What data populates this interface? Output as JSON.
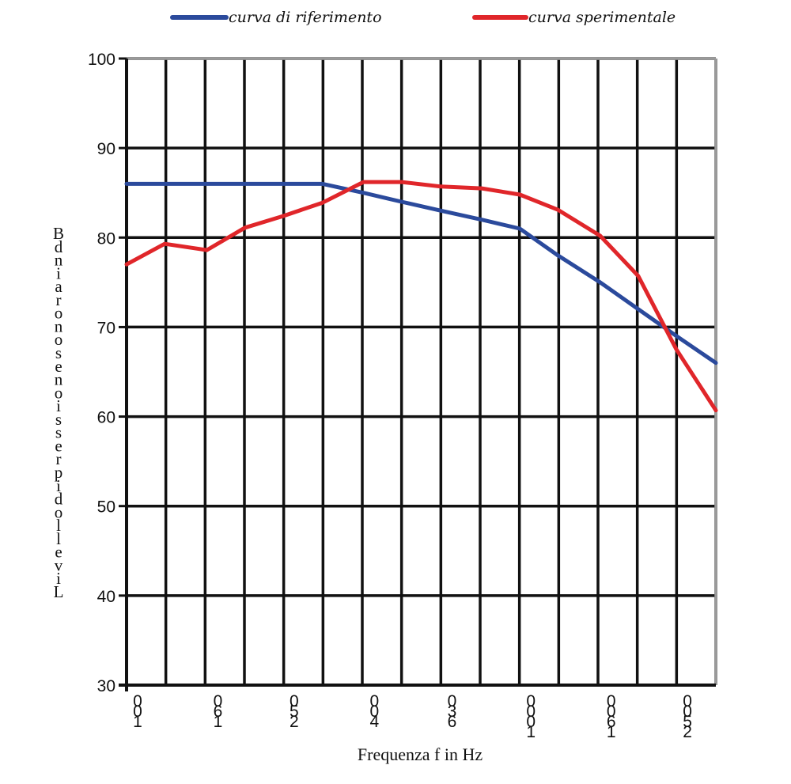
{
  "chart_data": {
    "type": "line",
    "title": "",
    "xlabel": "Frequenza f in Hz",
    "ylabel": "Livello di pressione sonora in dB",
    "ylim": [
      30,
      100
    ],
    "yticks": [
      30,
      40,
      50,
      60,
      70,
      80,
      90,
      100
    ],
    "x_tick_labels": [
      "100",
      "160",
      "250",
      "400",
      "630",
      "1000",
      "1600",
      "2500"
    ],
    "x_scale": "log",
    "grid": true,
    "legend_position": "top",
    "series": [
      {
        "name": "curva di riferimento",
        "color": "#2b4a9c",
        "x": [
          100,
          125,
          160,
          200,
          250,
          315,
          400,
          500,
          630,
          800,
          1000,
          1250,
          1600,
          2000,
          2500,
          3150
        ],
        "values": [
          86,
          86,
          86,
          86,
          86,
          86,
          85,
          84,
          83,
          82,
          81,
          78,
          75,
          72,
          69,
          66
        ]
      },
      {
        "name": "curva sperimentale",
        "color": "#e0262a",
        "x": [
          100,
          125,
          160,
          200,
          250,
          315,
          400,
          500,
          630,
          800,
          1000,
          1250,
          1600,
          2000,
          2500,
          3150
        ],
        "values": [
          77,
          79.3,
          78.6,
          81.1,
          82.4,
          83.9,
          86.2,
          86.2,
          85.7,
          85.5,
          84.8,
          83.1,
          80.2,
          75.7,
          67.5,
          60.7
        ]
      }
    ]
  }
}
